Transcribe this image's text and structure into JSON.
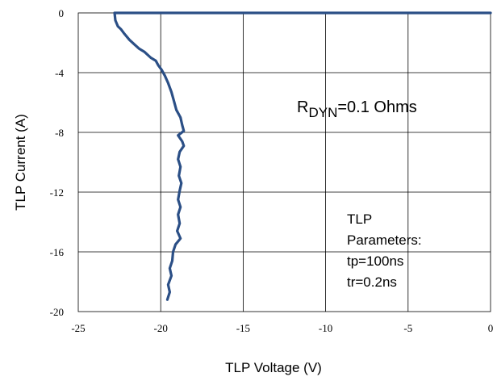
{
  "chart_data": {
    "type": "line",
    "xlabel": "TLP Voltage (V)",
    "ylabel": "TLP Current (A)",
    "xlim": [
      -25,
      0
    ],
    "ylim": [
      -20,
      0
    ],
    "x_ticks": [
      "-25",
      "-20",
      "-15",
      "-10",
      "-5",
      "0"
    ],
    "y_ticks": [
      "0",
      "-4",
      "-8",
      "-12",
      "-16",
      "-20"
    ],
    "grid": true,
    "annotations": {
      "rdyn": {
        "main": "R",
        "sub": "DYN",
        "rest": "=0.1 Ohms"
      },
      "params": [
        "TLP",
        "Parameters:",
        "tp=100ns",
        "tr=0.2ns"
      ]
    },
    "series": [
      {
        "color": "#2b4f86",
        "points": [
          [
            0,
            0
          ],
          [
            -22.8,
            0
          ],
          [
            -22.75,
            -0.5
          ],
          [
            -22.6,
            -0.9
          ],
          [
            -22.4,
            -1.1
          ],
          [
            -22.2,
            -1.4
          ],
          [
            -21.9,
            -1.8
          ],
          [
            -21.6,
            -2.1
          ],
          [
            -21.3,
            -2.4
          ],
          [
            -21.0,
            -2.6
          ],
          [
            -20.6,
            -3.0
          ],
          [
            -20.3,
            -3.2
          ],
          [
            -20.15,
            -3.5
          ],
          [
            -19.95,
            -3.8
          ],
          [
            -19.75,
            -4.2
          ],
          [
            -19.55,
            -4.7
          ],
          [
            -19.35,
            -5.3
          ],
          [
            -19.2,
            -5.9
          ],
          [
            -19.05,
            -6.5
          ],
          [
            -18.8,
            -7.0
          ],
          [
            -18.7,
            -7.5
          ],
          [
            -18.6,
            -7.9
          ],
          [
            -18.95,
            -8.2
          ],
          [
            -18.7,
            -8.6
          ],
          [
            -18.6,
            -8.9
          ],
          [
            -18.85,
            -9.3
          ],
          [
            -18.95,
            -9.8
          ],
          [
            -18.8,
            -10.3
          ],
          [
            -18.9,
            -10.9
          ],
          [
            -18.75,
            -11.4
          ],
          [
            -18.85,
            -11.9
          ],
          [
            -18.95,
            -12.5
          ],
          [
            -18.8,
            -13.0
          ],
          [
            -18.95,
            -13.5
          ],
          [
            -18.85,
            -14.1
          ],
          [
            -19.0,
            -14.6
          ],
          [
            -18.8,
            -15.1
          ],
          [
            -19.1,
            -15.5
          ],
          [
            -19.25,
            -16.0
          ],
          [
            -19.3,
            -16.6
          ],
          [
            -19.45,
            -17.1
          ],
          [
            -19.35,
            -17.6
          ],
          [
            -19.55,
            -18.2
          ],
          [
            -19.45,
            -18.7
          ],
          [
            -19.6,
            -19.2
          ]
        ]
      }
    ]
  }
}
